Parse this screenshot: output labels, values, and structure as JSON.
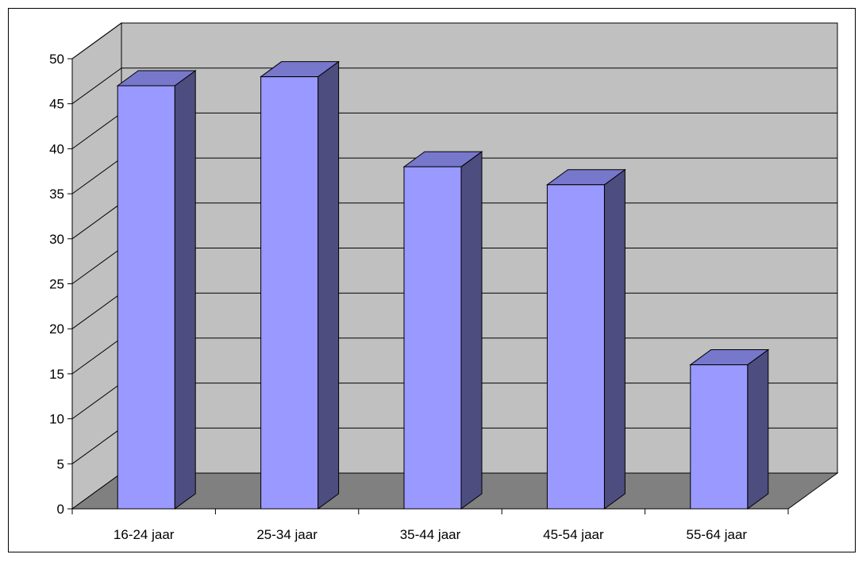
{
  "chart_data": {
    "type": "bar",
    "style": "3d-column",
    "title": "",
    "xlabel": "",
    "ylabel": "",
    "categories": [
      "16-24 jaar",
      "25-34 jaar",
      "35-44 jaar",
      "45-54 jaar",
      "55-64 jaar"
    ],
    "series": [
      {
        "values": [
          47,
          48,
          38,
          36,
          16
        ]
      }
    ],
    "ylim": [
      0,
      50
    ],
    "yticks": [
      0,
      5,
      10,
      15,
      20,
      25,
      30,
      35,
      40,
      45,
      50
    ],
    "grid": true,
    "legend": "none",
    "colors": {
      "bar_front": "#9999ff",
      "bar_top": "#7777cc",
      "bar_side": "#4d4d80",
      "back_wall": "#c0c0c0",
      "side_wall": "#c0c0c0",
      "floor": "#808080",
      "gridline": "#000000"
    }
  }
}
